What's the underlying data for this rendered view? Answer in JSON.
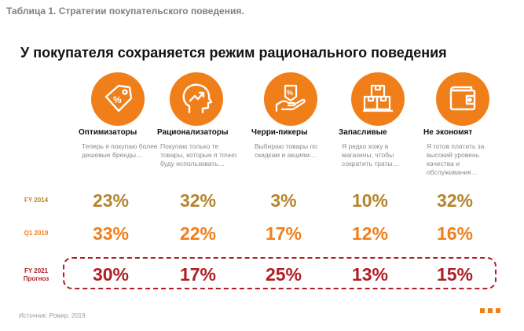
{
  "caption": "Таблица 1. Стратегии покупательского поведения.",
  "headline": "У покупателя сохраняется режим рационального поведения",
  "colors": {
    "accent": "#f07f1a",
    "fy2014": "#b5852a",
    "q12019": "#f07f1a",
    "fy2021": "#b01e24"
  },
  "segments": [
    {
      "name": "Оптимизаторы",
      "desc": "Теперь я покупаю более дешевые бренды…",
      "icon": "price-tag-percent-icon"
    },
    {
      "name": "Рационализаторы",
      "desc": "Покупаю только те товары, которые я точно буду использовать…",
      "icon": "head-growth-arrow-icon"
    },
    {
      "name": "Черри-пикеры",
      "desc": "Выбираю товары по скидкам и акциям…",
      "icon": "hand-discount-tag-icon"
    },
    {
      "name": "Запасливые",
      "desc": "Я редко хожу в магазины, чтобы сократить траты…",
      "icon": "stacked-boxes-icon"
    },
    {
      "name": "Не экономят",
      "desc": "Я готов платить за высокий уровень качества и обслуживания…",
      "icon": "wallet-icon"
    }
  ],
  "rows": [
    {
      "label": "FY 2014",
      "values": [
        "23%",
        "32%",
        "3%",
        "10%",
        "32%"
      ]
    },
    {
      "label": "Q1 2019",
      "values": [
        "33%",
        "22%",
        "17%",
        "12%",
        "16%"
      ]
    },
    {
      "label_line1": "FY 2021",
      "label_line2": "Прогноз",
      "values": [
        "30%",
        "17%",
        "25%",
        "13%",
        "15%"
      ]
    }
  ],
  "source": "Источник: Ромир, 2019"
}
